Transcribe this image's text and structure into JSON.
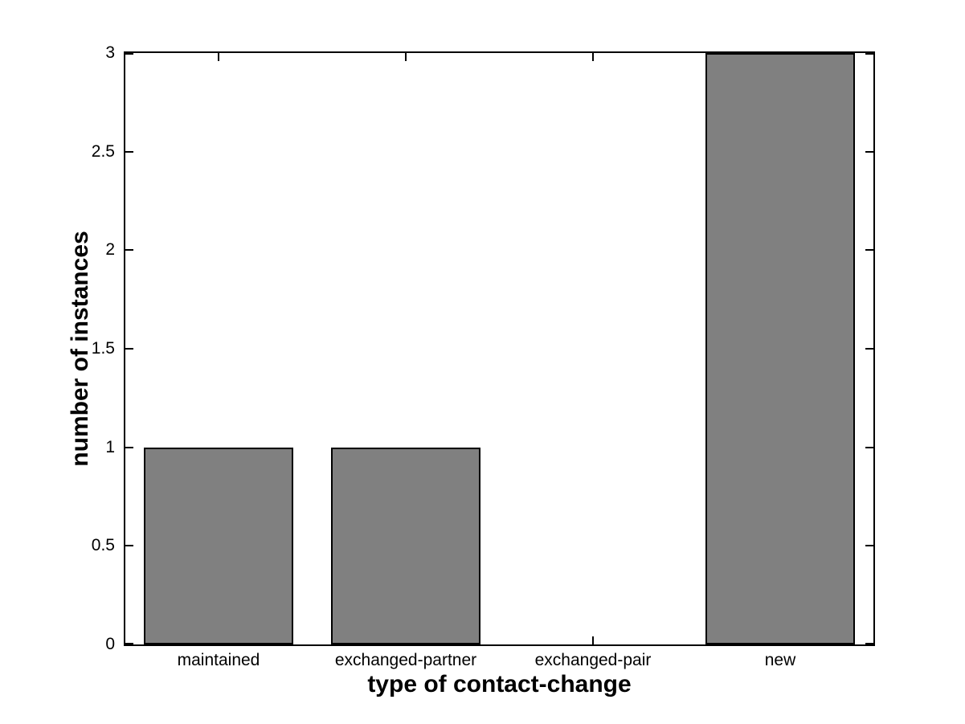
{
  "chart_data": {
    "type": "bar",
    "title": "",
    "categories": [
      "maintained",
      "exchanged-partner",
      "exchanged-pair",
      "new"
    ],
    "values": [
      1,
      1,
      0,
      3
    ],
    "xlabel": "type of contact-change",
    "ylabel": "number of instances",
    "xlim": [
      0.5,
      4.5
    ],
    "ylim": [
      0,
      3
    ],
    "x_positions": [
      1,
      2,
      3,
      4
    ],
    "yticks": [
      0,
      0.5,
      1,
      1.5,
      2,
      2.5,
      3
    ],
    "ytick_labels": [
      "0",
      "0.5",
      "1",
      "1.5",
      "2",
      "2.5",
      "3"
    ],
    "bar_width": 0.8,
    "grid": false,
    "legend": false,
    "box": true,
    "tick_direction": "in",
    "colors": {
      "bar_fill": "#808080",
      "bar_edge": "#000000",
      "axis": "#000000",
      "background": "#ffffff",
      "text": "#000000"
    }
  }
}
